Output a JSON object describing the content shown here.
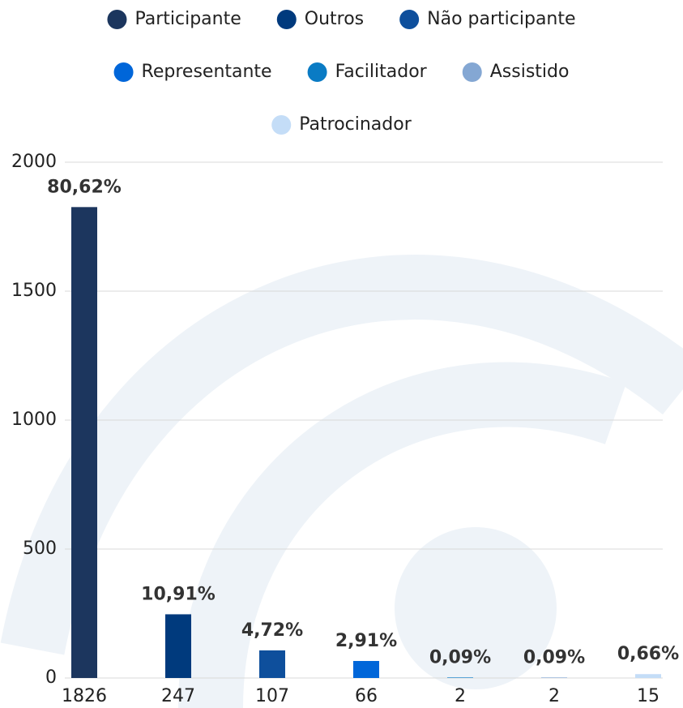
{
  "chart_data": {
    "type": "bar",
    "legend": [
      "Participante",
      "Outros",
      "Não participante",
      "Representante",
      "Facilitador",
      "Assistido",
      "Patrocinador"
    ],
    "categories": [
      "1826",
      "247",
      "107",
      "66",
      "2",
      "2",
      "15"
    ],
    "values": [
      1826,
      247,
      107,
      66,
      2,
      2,
      15
    ],
    "annotations": [
      "80,62%",
      "10,91%",
      "4,72%",
      "2,91%",
      "0,09%",
      "0,09%",
      "0,66%"
    ],
    "colors": [
      "#1c365e",
      "#003a7d",
      "#0e4f9c",
      "#0066d9",
      "#0a7bc4",
      "#84a7d3",
      "#c4ddf7"
    ],
    "ylim": [
      0,
      2000
    ],
    "yticks": [
      0,
      500,
      1000,
      1500,
      2000
    ],
    "grid": true
  }
}
